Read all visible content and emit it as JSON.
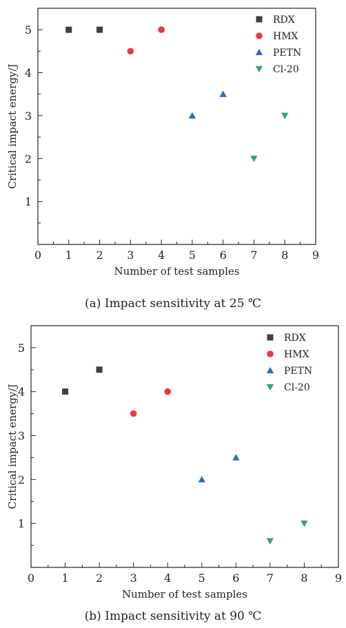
{
  "chart_data": [
    {
      "type": "scatter",
      "caption": "(a) Impact sensitivity at 25 ℃",
      "xlabel": "Number of test samples",
      "ylabel": "Critical impact energy/J",
      "xlim": [
        0,
        9
      ],
      "ylim": [
        0,
        5.5
      ],
      "xticks": [
        "0",
        "1",
        "2",
        "3",
        "4",
        "5",
        "6",
        "7",
        "8",
        "9"
      ],
      "yticks": [
        "1",
        "2",
        "3",
        "4",
        "5"
      ],
      "legend_position": "top-right",
      "series": [
        {
          "name": "RDX",
          "marker": "square",
          "color": "#404040",
          "x": [
            1,
            2
          ],
          "y": [
            5,
            5
          ]
        },
        {
          "name": "HMX",
          "marker": "circle",
          "color": "#e8393f",
          "x": [
            3,
            4
          ],
          "y": [
            4.5,
            5
          ]
        },
        {
          "name": "PETN",
          "marker": "triangle-up",
          "color": "#2f6cc4",
          "x": [
            5,
            6
          ],
          "y": [
            3,
            3.5
          ]
        },
        {
          "name": "Cl-20",
          "marker": "triangle-down",
          "color": "#2fa868",
          "x": [
            7,
            8
          ],
          "y": [
            2,
            3
          ]
        }
      ]
    },
    {
      "type": "scatter",
      "caption": "(b) Impact sensitivity at 90 ℃",
      "xlabel": "Number of test samples",
      "ylabel": "Critical impact energy/J",
      "xlim": [
        0,
        9
      ],
      "ylim": [
        0,
        5.5
      ],
      "xticks": [
        "0",
        "1",
        "2",
        "3",
        "4",
        "5",
        "6",
        "7",
        "8",
        "9"
      ],
      "yticks": [
        "1",
        "2",
        "3",
        "4",
        "5"
      ],
      "legend_position": "top-right",
      "series": [
        {
          "name": "RDX",
          "marker": "square",
          "color": "#404040",
          "x": [
            1,
            2
          ],
          "y": [
            4,
            4.5
          ]
        },
        {
          "name": "HMX",
          "marker": "circle",
          "color": "#e8393f",
          "x": [
            3,
            4
          ],
          "y": [
            3.5,
            4
          ]
        },
        {
          "name": "PETN",
          "marker": "triangle-up",
          "color": "#2f6cc4",
          "x": [
            5,
            6
          ],
          "y": [
            2,
            2.5
          ]
        },
        {
          "name": "Cl-20",
          "marker": "triangle-down",
          "color": "#2fa868",
          "x": [
            7,
            8
          ],
          "y": [
            0.6,
            1
          ]
        }
      ]
    }
  ]
}
